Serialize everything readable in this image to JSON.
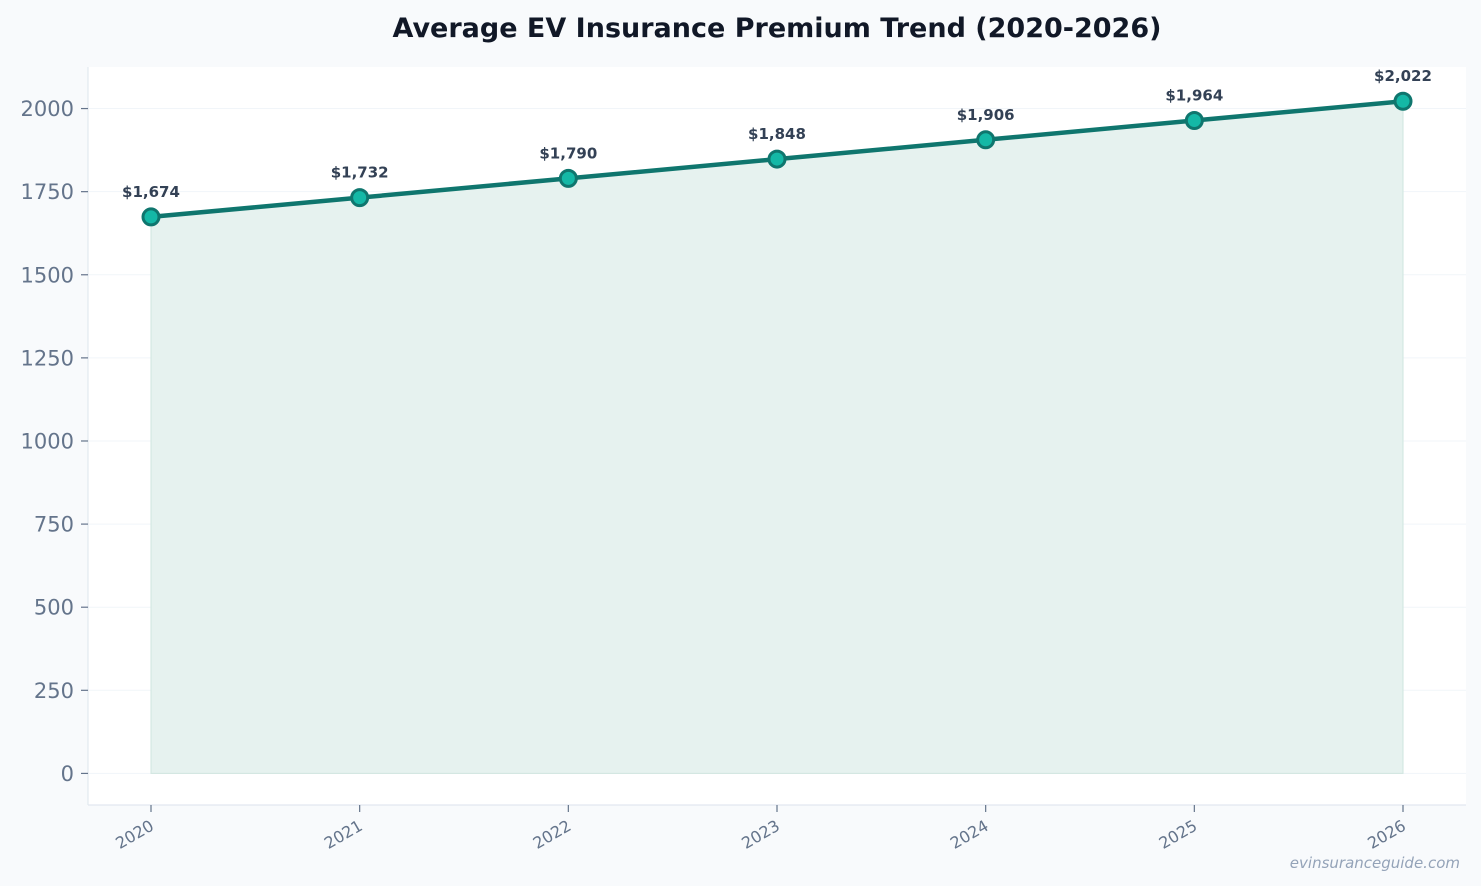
{
  "chart_data": {
    "type": "area",
    "title": "Average EV Insurance Premium Trend (2020-2026)",
    "xlabel": "",
    "ylabel": "",
    "categories": [
      "2020",
      "2021",
      "2022",
      "2023",
      "2024",
      "2025",
      "2026"
    ],
    "series": [
      {
        "values": [
          1674,
          1732,
          1790,
          1848,
          1906,
          1964,
          2022
        ],
        "labels": [
          "$1,674",
          "$1,732",
          "$1,790",
          "$1,848",
          "$1,906",
          "$1,964",
          "$2,022"
        ]
      }
    ],
    "ylim": [
      -95,
      2125
    ],
    "yticks": [
      0,
      250,
      500,
      750,
      1000,
      1250,
      1500,
      1750,
      2000
    ],
    "grid": true,
    "legend": "none",
    "colors": {
      "line": "#0f766e",
      "area": "#e6f2ef",
      "marker_fill": "#14b8a6",
      "marker_stroke": "#0f766e",
      "grid": "#f1f5f9",
      "axis": "#e2e8f0",
      "background": "#f8fafc",
      "plot_background": "#ffffff"
    }
  },
  "watermark": "evinsuranceguide.com"
}
